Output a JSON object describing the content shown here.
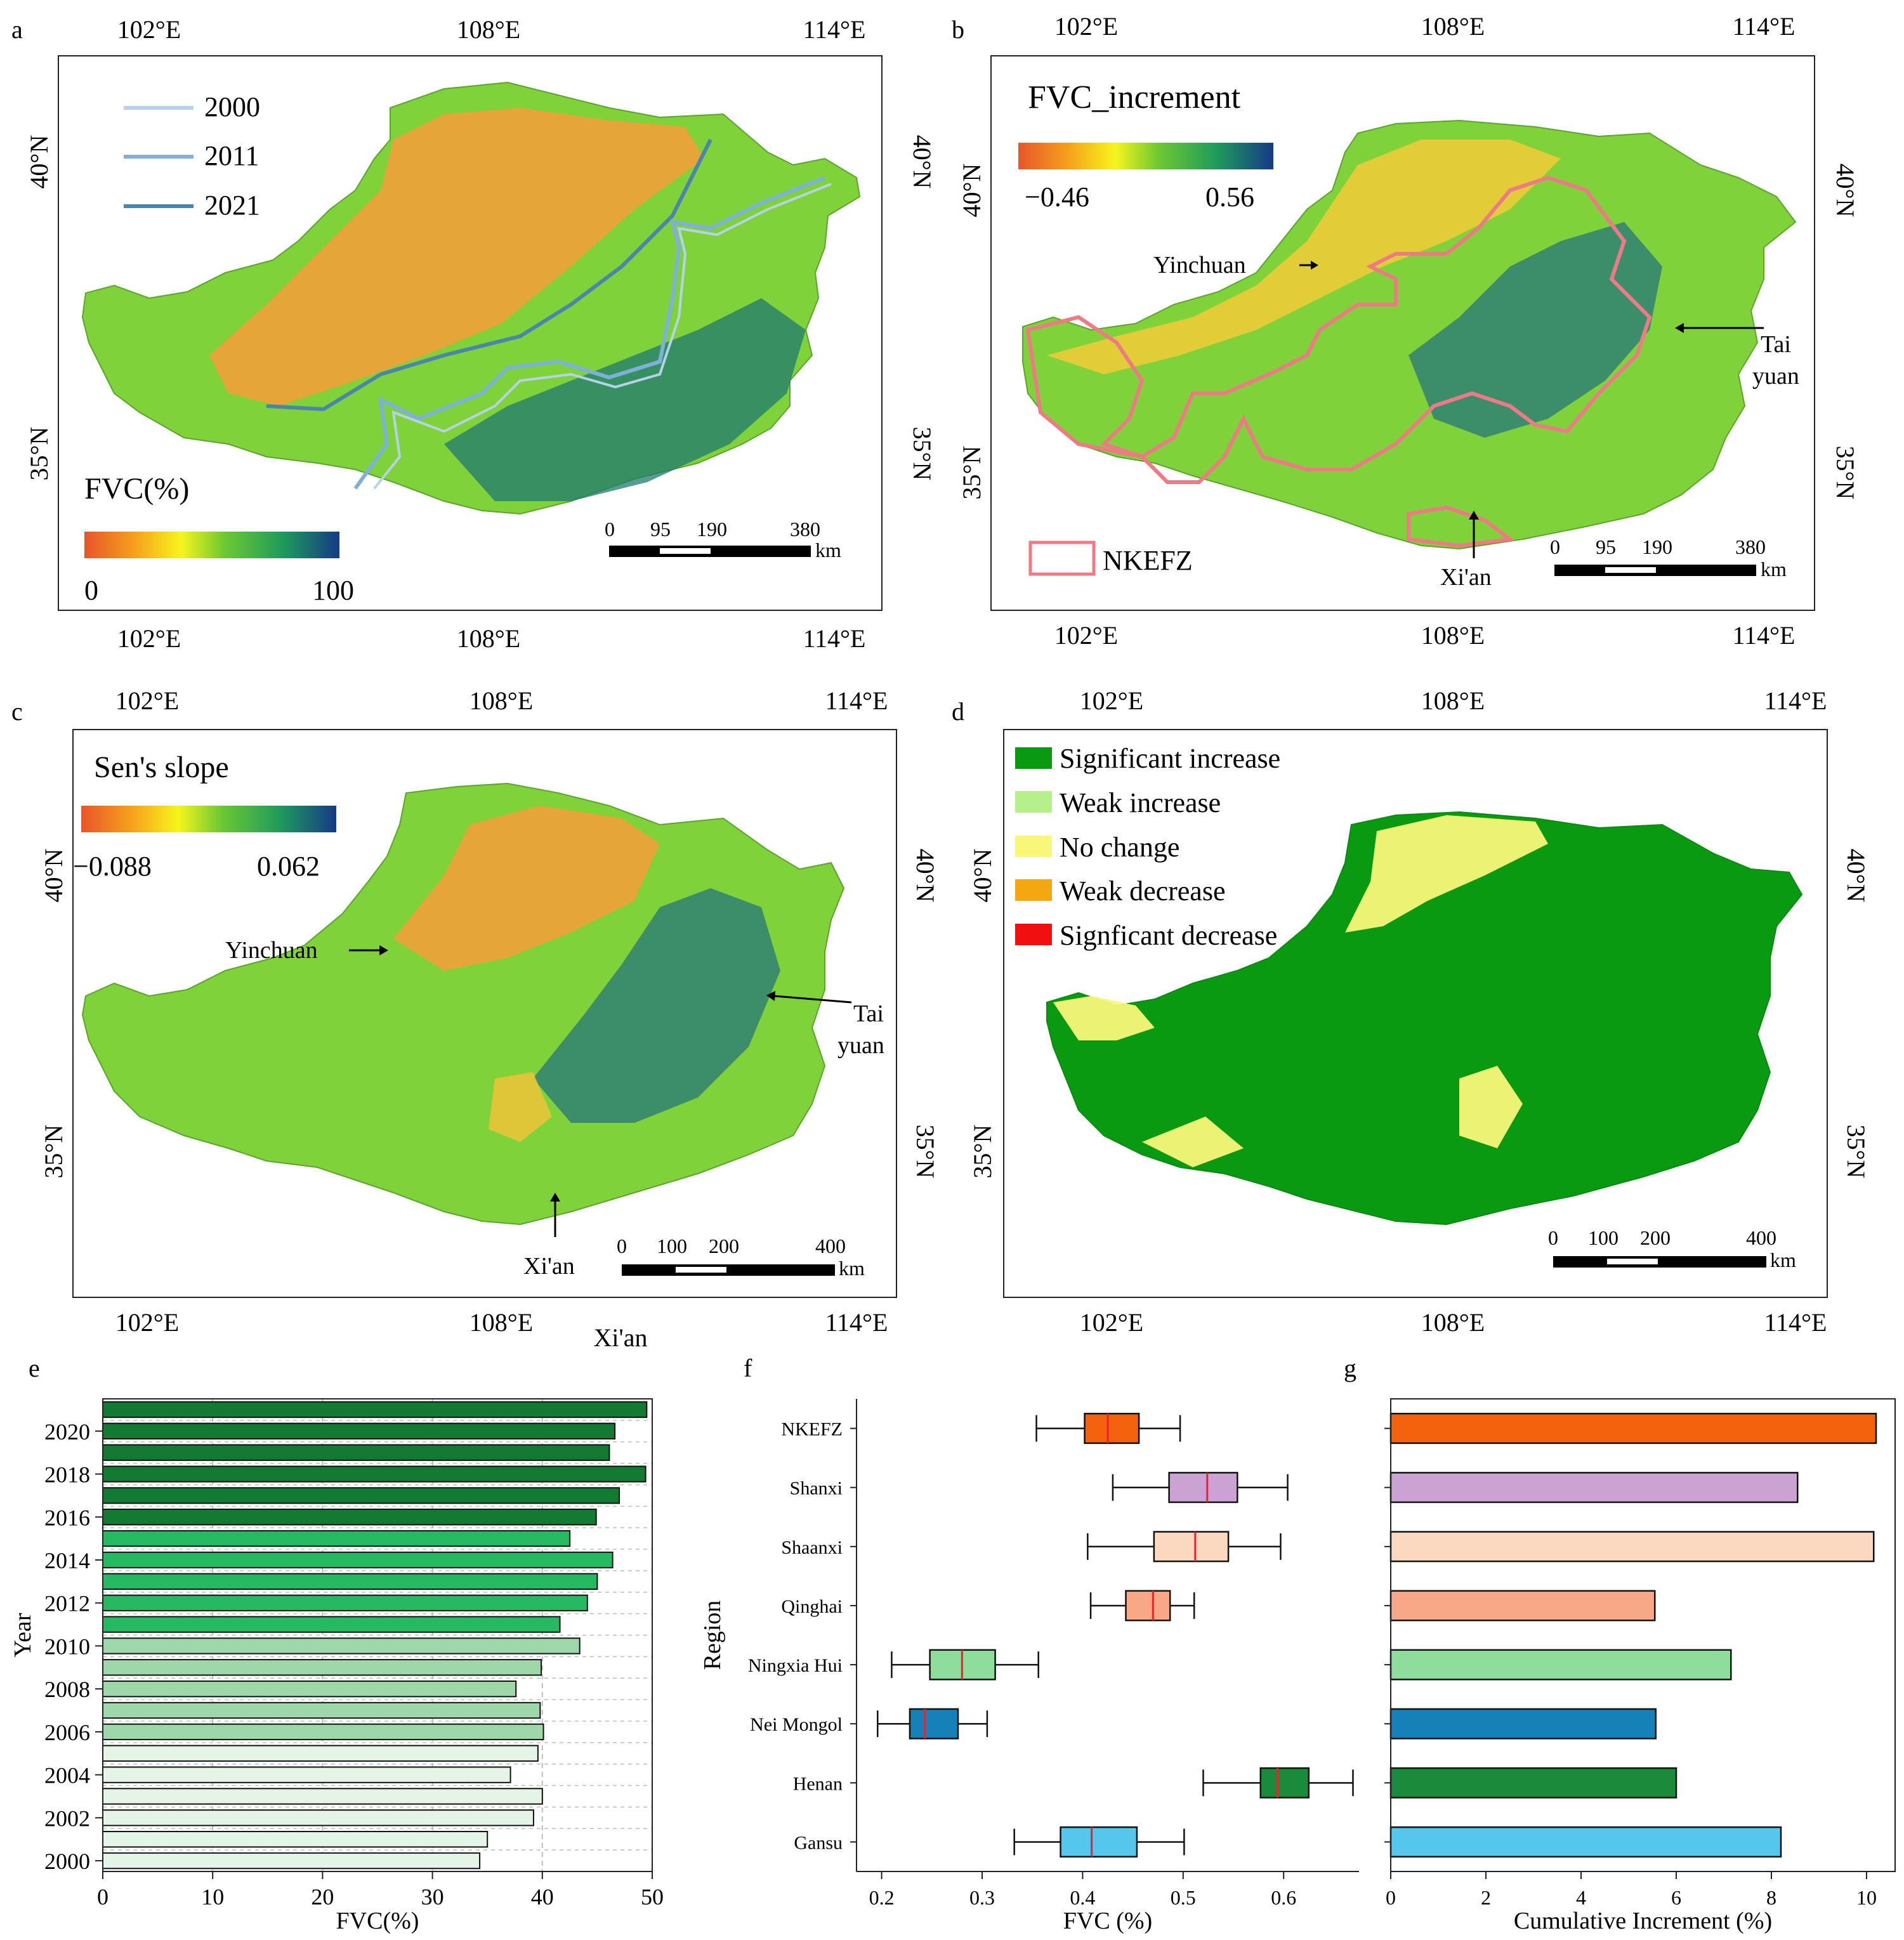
{
  "colors": {
    "fvc_low": "#e8552a",
    "fvc_mid_a": "#f6a21c",
    "fvc_mid_b": "#f6f51c",
    "fvc_mid_c": "#6cc832",
    "fvc_mid_d": "#1f9a5c",
    "fvc_high": "#153a86",
    "sig_increase": "#0a9a12",
    "weak_increase": "#b6f08a",
    "no_change": "#f8f77a",
    "weak_decrease": "#f5a712",
    "sig_decrease": "#f01010",
    "nkefz_outline": "#ee7a86",
    "line_2000": "#b7d2e8",
    "line_2011": "#7fb1d8",
    "line_2021": "#4a86ab"
  },
  "panels": {
    "a": {
      "letter": "a",
      "colorbar_title": "FVC(%)",
      "colorbar_min": "0",
      "colorbar_max": "100",
      "legend": [
        "2000",
        "2011",
        "2021"
      ],
      "top_ticks": [
        "102°E",
        "108°E",
        "114°E"
      ],
      "bottom_ticks": [
        "102°E",
        "108°E",
        "114°E"
      ],
      "left_ticks": [
        "40°N",
        "35°N"
      ],
      "right_ticks": [
        "40°N",
        "35°N"
      ],
      "scale_labels": [
        "0",
        "95",
        "190",
        "380"
      ],
      "scale_unit": "km"
    },
    "b": {
      "letter": "b",
      "colorbar_title": "FVC_increment",
      "colorbar_min": "−0.46",
      "colorbar_max": "0.56",
      "legend_nkefz": "NKEFZ",
      "cities": [
        "Yinchuan",
        "Tai",
        "yuan",
        "Xi'an"
      ],
      "top_ticks": [
        "102°E",
        "108°E",
        "114°E"
      ],
      "bottom_ticks": [
        "102°E",
        "108°E",
        "114°E"
      ],
      "left_ticks": [
        "40°N",
        "35°N"
      ],
      "right_ticks": [
        "40°N",
        "35°N"
      ],
      "scale_labels": [
        "0",
        "95",
        "190",
        "380"
      ],
      "scale_unit": "km"
    },
    "c": {
      "letter": "c",
      "colorbar_title": "Sen's slope",
      "colorbar_min": "−0.088",
      "colorbar_max": "0.062",
      "cities": [
        "Yinchuan",
        "Tai",
        "yuan",
        "Xi'an"
      ],
      "extra_label": "Xi'an",
      "top_ticks": [
        "102°E",
        "108°E",
        "114°E"
      ],
      "bottom_ticks": [
        "102°E",
        "108°E",
        "114°E"
      ],
      "left_ticks": [
        "40°N",
        "35°N"
      ],
      "right_ticks": [
        "40°N",
        "35°N"
      ],
      "scale_labels": [
        "0",
        "100",
        "200",
        "400"
      ],
      "scale_unit": "km"
    },
    "d": {
      "letter": "d",
      "legend": [
        "Significant increase",
        "Weak increase",
        "No change",
        "Weak decrease",
        "Signficant decrease"
      ],
      "top_ticks": [
        "102°E",
        "108°E",
        "114°E"
      ],
      "bottom_ticks": [
        "102°E",
        "108°E",
        "114°E"
      ],
      "left_ticks": [
        "40°N",
        "35°N"
      ],
      "right_ticks": [
        "40°N",
        "35°N"
      ],
      "scale_labels": [
        "0",
        "100",
        "200",
        "400"
      ],
      "scale_unit": "km"
    }
  },
  "chart_data": [
    {
      "id": "e",
      "letter": "e",
      "type": "bar",
      "orientation": "horizontal",
      "xlabel": "FVC(%)",
      "ylabel": "Year",
      "xlim": [
        0,
        50
      ],
      "xticks": [
        "0",
        "10",
        "20",
        "30",
        "40",
        "50"
      ],
      "yticks": [
        "2000",
        "2002",
        "2004",
        "2006",
        "2008",
        "2010",
        "2012",
        "2014",
        "2016",
        "2018",
        "2020"
      ],
      "categories": [
        "2000",
        "2001",
        "2002",
        "2003",
        "2004",
        "2005",
        "2006",
        "2007",
        "2008",
        "2009",
        "2010",
        "2011",
        "2012",
        "2013",
        "2014",
        "2015",
        "2016",
        "2017",
        "2018",
        "2019",
        "2020",
        "2021"
      ],
      "values": [
        34.3,
        35.0,
        39.2,
        40.0,
        37.1,
        39.6,
        40.1,
        39.8,
        37.6,
        39.9,
        43.4,
        41.6,
        44.1,
        45.0,
        46.4,
        42.5,
        44.9,
        47.0,
        49.4,
        46.1,
        46.6,
        49.5
      ],
      "grid": true
    },
    {
      "id": "f",
      "letter": "f",
      "type": "boxplot",
      "orientation": "horizontal",
      "xlabel": "FVC (%)",
      "ylabel": "Region",
      "xlim": [
        0.175,
        0.675
      ],
      "xticks": [
        "0.2",
        "0.3",
        "0.4",
        "0.5",
        "0.6"
      ],
      "categories": [
        "NKEFZ",
        "Shanxi",
        "Shaanxi",
        "Qinghai",
        "Ningxia Hui",
        "Nei Mongol",
        "Henan",
        "Gansu"
      ],
      "boxes": [
        {
          "whisker_low": 0.354,
          "q1": 0.402,
          "median": 0.425,
          "q3": 0.456,
          "whisker_high": 0.497
        },
        {
          "whisker_low": 0.43,
          "q1": 0.486,
          "median": 0.524,
          "q3": 0.554,
          "whisker_high": 0.604
        },
        {
          "whisker_low": 0.405,
          "q1": 0.471,
          "median": 0.512,
          "q3": 0.545,
          "whisker_high": 0.597
        },
        {
          "whisker_low": 0.408,
          "q1": 0.443,
          "median": 0.47,
          "q3": 0.487,
          "whisker_high": 0.511
        },
        {
          "whisker_low": 0.21,
          "q1": 0.248,
          "median": 0.28,
          "q3": 0.313,
          "whisker_high": 0.356
        },
        {
          "whisker_low": 0.196,
          "q1": 0.228,
          "median": 0.243,
          "q3": 0.276,
          "whisker_high": 0.305
        },
        {
          "whisker_low": 0.52,
          "q1": 0.577,
          "median": 0.594,
          "q3": 0.625,
          "whisker_high": 0.669
        },
        {
          "whisker_low": 0.332,
          "q1": 0.378,
          "median": 0.409,
          "q3": 0.454,
          "whisker_high": 0.501
        }
      ],
      "box_colors": [
        "#f5620e",
        "#caa3d3",
        "#fbd8c0",
        "#f8a886",
        "#8edd9d",
        "#1681b9",
        "#1a8a3b",
        "#55c6ec"
      ]
    },
    {
      "id": "g",
      "letter": "g",
      "type": "bar",
      "orientation": "horizontal",
      "xlabel": "Cumulative Increment (%)",
      "xlim": [
        0,
        10.6
      ],
      "xticks": [
        "0",
        "2",
        "4",
        "6",
        "8",
        "10"
      ],
      "categories": [
        "NKEFZ",
        "Shanxi",
        "Shaanxi",
        "Qinghai",
        "Ningxia Hui",
        "Nei Mongol",
        "Henan",
        "Gansu"
      ],
      "values": [
        10.2,
        8.55,
        10.15,
        5.55,
        7.15,
        5.57,
        6.0,
        8.2
      ],
      "bar_colors": [
        "#f5620e",
        "#caa3d3",
        "#fbd8c0",
        "#f8a886",
        "#8edd9d",
        "#1681b9",
        "#1a8a3b",
        "#55c6ec"
      ]
    }
  ]
}
